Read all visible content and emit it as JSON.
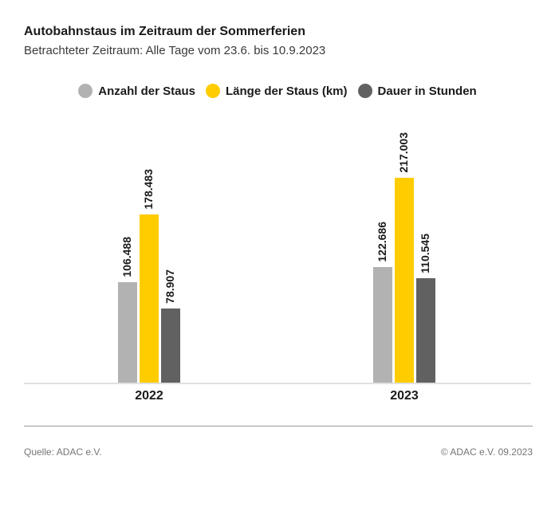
{
  "header": {
    "title": "Autobahnstaus im Zeitraum der Sommerferien",
    "subtitle": "Betrachteter Zeitraum: Alle Tage vom 23.6. bis 10.9.2023"
  },
  "legend": [
    {
      "label": "Anzahl der Staus",
      "color": "#b2b2b2",
      "icon": "circle-swatch-icon"
    },
    {
      "label": "Länge der Staus (km)",
      "color": "#ffcc00",
      "icon": "circle-swatch-icon"
    },
    {
      "label": "Dauer in Stunden",
      "color": "#616161",
      "icon": "circle-swatch-icon"
    }
  ],
  "chart_data": {
    "type": "bar",
    "title": "Autobahnstaus im Zeitraum der Sommerferien",
    "subtitle": "Betrachteter Zeitraum: Alle Tage vom 23.6. bis 10.9.2023",
    "categories": [
      "2022",
      "2023"
    ],
    "series": [
      {
        "name": "Anzahl der Staus",
        "color": "#b2b2b2",
        "values": [
          106488,
          122686
        ],
        "labels": [
          "106.488",
          "122.686"
        ]
      },
      {
        "name": "Länge der Staus (km)",
        "color": "#ffcc00",
        "values": [
          178483,
          217003
        ],
        "labels": [
          "178.483",
          "217.003"
        ]
      },
      {
        "name": "Dauer in Stunden",
        "color": "#616161",
        "values": [
          78907,
          110545
        ],
        "labels": [
          "78.907",
          "110.545"
        ]
      }
    ],
    "xlabel": "",
    "ylabel": "",
    "ylim": [
      0,
      280000
    ],
    "grid": false,
    "value_axis_visible": false,
    "data_label_rotation": 90,
    "legend_position": "top"
  },
  "footer": {
    "source": "Quelle: ADAC e.V.",
    "copyright": "© ADAC e.V. 09.2023"
  },
  "colors": {
    "accent_yellow": "#ffcc00",
    "light_gray": "#b2b2b2",
    "dark_gray": "#616161",
    "text": "#1a1a1a",
    "footer_text": "#757575",
    "axis_line": "#e0e0e0",
    "divider": "#9b9b9b",
    "background": "#ffffff"
  }
}
